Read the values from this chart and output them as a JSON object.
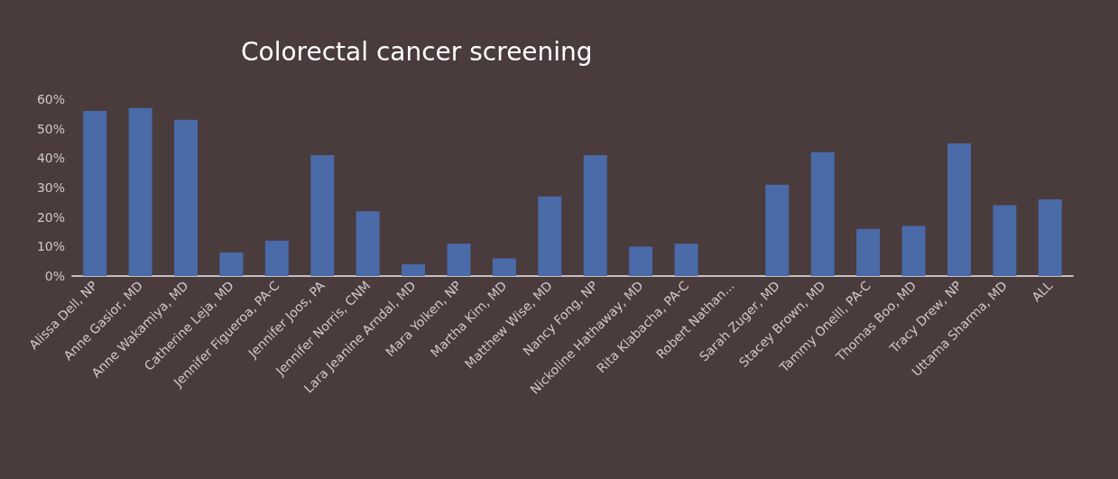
{
  "chart_data": {
    "type": "bar",
    "title": "Colorectal cancer screening",
    "categories": [
      "Alissa Dell, NP",
      "Anne Gasior, MD",
      "Anne Wakamiya, MD",
      "Catherine Leja, MD",
      "Jennifer Figueroa, PA-C",
      "Jennifer Joos, PA",
      "Jennifer Norris, CNM",
      "Lara Jeanine Arndal, MD",
      "Mara Yolken, NP",
      "Martha Kim, MD",
      "Matthew Wise, MD",
      "Nancy Fong, NP",
      "Nickoline Hathaway, MD",
      "Rita Klabacha, PA-C",
      "Robert Nathan...",
      "Sarah Zuger, MD",
      "Stacey Brown, MD",
      "Tammy Oneill, PA-C",
      "Thomas Boo, MD",
      "Tracy Drew, NP",
      "Uttama Sharma, MD",
      "ALL"
    ],
    "values": [
      56,
      57,
      53,
      8,
      12,
      41,
      22,
      4,
      11,
      6,
      27,
      41,
      10,
      11,
      0,
      31,
      42,
      16,
      17,
      45,
      24,
      26
    ],
    "color": "#4a6aa8",
    "ylim": [
      0,
      60
    ],
    "yticks": [
      {
        "value": 0,
        "label": "0%"
      },
      {
        "value": 10,
        "label": "10%"
      },
      {
        "value": 20,
        "label": "20%"
      },
      {
        "value": 30,
        "label": "30%"
      },
      {
        "value": 40,
        "label": "40%"
      },
      {
        "value": 50,
        "label": "50%"
      },
      {
        "value": 60,
        "label": "60%"
      }
    ],
    "grid": false
  }
}
